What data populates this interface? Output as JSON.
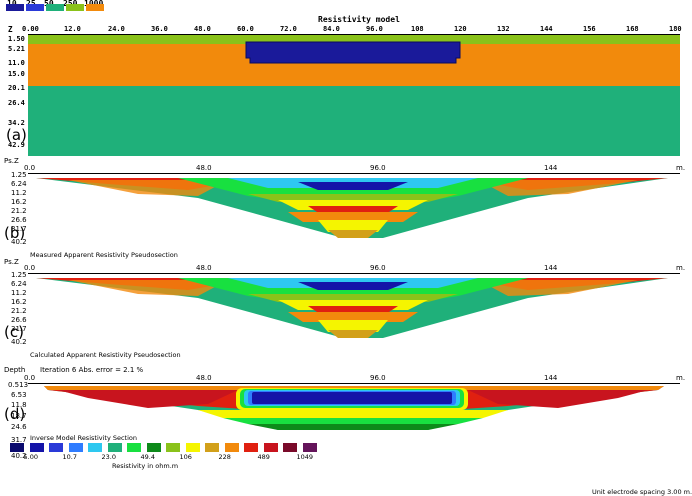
{
  "top_legend": {
    "items": [
      {
        "label": "10",
        "color": "#1a1a9a"
      },
      {
        "label": "25",
        "color": "#2a3ad8"
      },
      {
        "label": "50",
        "color": "#1fb07a"
      },
      {
        "label": "250",
        "color": "#8ac21a"
      },
      {
        "label": "1000",
        "color": "#f28a0c"
      }
    ]
  },
  "panel_a": {
    "title": "Resistivity model",
    "axis_label": "Z",
    "x_ticks": [
      "0.00",
      "12.0",
      "24.0",
      "36.0",
      "48.0",
      "60.0",
      "72.0",
      "84.0",
      "96.0",
      "108",
      "120",
      "132",
      "144",
      "156",
      "168",
      "180"
    ],
    "y_ticks": [
      "1.50",
      "5.21",
      "11.0",
      "15.0",
      "20.1",
      "26.4",
      "34.2",
      "42.9"
    ],
    "tag": "(a)"
  },
  "panel_b": {
    "axis_label": "Ps.Z",
    "x_ticks": [
      "0.0",
      "48.0",
      "96.0",
      "144"
    ],
    "x_unit": "m.",
    "y_ticks": [
      "1.25",
      "6.24",
      "11.2",
      "16.2",
      "21.2",
      "26.6",
      "31.7",
      "40.2"
    ],
    "tag": "(b)",
    "caption": "Measured Apparent Resistivity Pseudosection"
  },
  "panel_c": {
    "axis_label": "Ps.Z",
    "x_ticks": [
      "0.0",
      "48.0",
      "96.0",
      "144"
    ],
    "x_unit": "m.",
    "y_ticks": [
      "1.25",
      "6.24",
      "11.2",
      "16.2",
      "21.2",
      "26.6",
      "31.7",
      "40.2"
    ],
    "tag": "(c)",
    "caption": "Calculated Apparent Resistivity Pseudosection"
  },
  "panel_d": {
    "axis_label": "Depth",
    "iteration_text": "Iteration 6 Abs. error = 2.1 %",
    "x_ticks": [
      "0.0",
      "48.0",
      "96.0",
      "144"
    ],
    "x_unit": "m.",
    "y_ticks": [
      "0.513",
      "6.53",
      "11.8",
      "18.7",
      "24.6",
      "31.7",
      "40.2"
    ],
    "tag": "(d)",
    "caption": "Inverse Model Resistivity Section"
  },
  "colorbar": {
    "colors": [
      "#0a0a6e",
      "#1414a8",
      "#2a3ad8",
      "#2f7cff",
      "#2ec8f0",
      "#1fb07a",
      "#18e040",
      "#0d8a1a",
      "#8ac21a",
      "#f5f500",
      "#d2a01a",
      "#f28a0c",
      "#e02010",
      "#c8141e",
      "#7a0a2a",
      "#64145a"
    ],
    "labels": [
      "5.00",
      "10.7",
      "23.0",
      "49.4",
      "106",
      "228",
      "489",
      "1049"
    ],
    "units": "Resistivity in ohm.m"
  },
  "footer": {
    "spacing_text": "Unit electrode spacing 3.00 m."
  }
}
